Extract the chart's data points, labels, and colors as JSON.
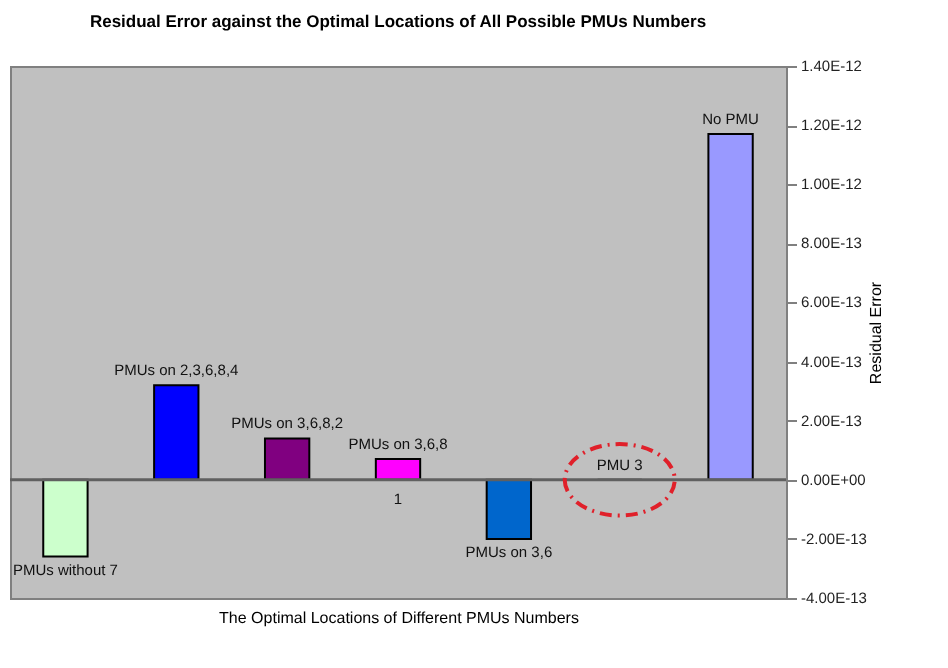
{
  "chart_data": {
    "type": "bar",
    "title": "Residual Error against the Optimal Locations of All Possible PMUs Numbers",
    "xlabel": "The Optimal Locations of Different PMUs Numbers",
    "ylabel": "Residual Error",
    "categories": [
      "PMUs without 7",
      "PMUs on 2,3,6,8,4",
      "PMUs on 3,6,8,2",
      "PMUs on 3,6,8",
      "PMUs on 3,6",
      "PMU 3",
      "No PMU"
    ],
    "values": [
      -2.6e-13,
      3.2e-13,
      1.4e-13,
      7e-14,
      -2e-13,
      0,
      1.17e-12
    ],
    "colors": [
      "#ccffcc",
      "#0000ff",
      "#800080",
      "#ff00ff",
      "#0066cc",
      "#000000",
      "#9999ff"
    ],
    "ylim": [
      -4e-13,
      1.4e-12
    ],
    "yticks": [
      {
        "value": -4e-13,
        "label": "-4.00E-13"
      },
      {
        "value": -2e-13,
        "label": "-2.00E-13"
      },
      {
        "value": 0,
        "label": "0.00E+00"
      },
      {
        "value": 2e-13,
        "label": "2.00E-13"
      },
      {
        "value": 4e-13,
        "label": "4.00E-13"
      },
      {
        "value": 6e-13,
        "label": "6.00E-13"
      },
      {
        "value": 8e-13,
        "label": "8.00E-13"
      },
      {
        "value": 1e-12,
        "label": "1.00E-12"
      },
      {
        "value": 1.2e-12,
        "label": "1.20E-12"
      },
      {
        "value": 1.4e-12,
        "label": "1.40E-12"
      }
    ],
    "ref_lines": [
      {
        "axis": "y",
        "value": 0,
        "color": "#606060"
      }
    ],
    "annotations": [
      "1"
    ],
    "grid": false
  }
}
